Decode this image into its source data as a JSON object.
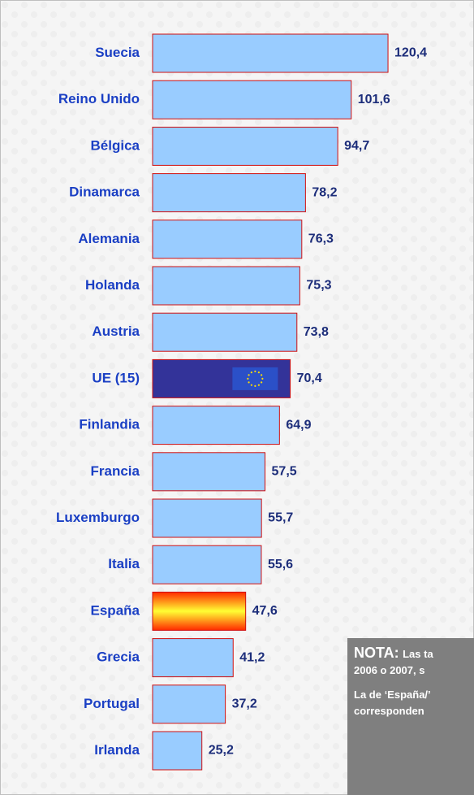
{
  "chart_data": {
    "type": "bar",
    "orientation": "horizontal",
    "categories": [
      "Suecia",
      "Reino Unido",
      "Bélgica",
      "Dinamarca",
      "Alemania",
      "Holanda",
      "Austria",
      "UE (15)",
      "Finlandia",
      "Francia",
      "Luxemburgo",
      "Italia",
      "España",
      "Grecia",
      "Portugal",
      "Irlanda"
    ],
    "values": [
      120.4,
      101.6,
      94.7,
      78.2,
      76.3,
      75.3,
      73.8,
      70.4,
      64.9,
      57.5,
      55.7,
      55.6,
      47.6,
      41.2,
      37.2,
      25.2
    ],
    "value_labels": [
      "120,4",
      "101,6",
      "94,7",
      "78,2",
      "76,3",
      "75,3",
      "73,8",
      "70,4",
      "64,9",
      "57,5",
      "55,7",
      "55,6",
      "47,6",
      "41,2",
      "37,2",
      "25,2"
    ],
    "colors": [
      "#99ccff",
      "#99ccff",
      "#99ccff",
      "#99ccff",
      "#99ccff",
      "#99ccff",
      "#99ccff",
      "#333399",
      "#99ccff",
      "#99ccff",
      "#99ccff",
      "#99ccff",
      [
        "#ff2a00",
        "#ffff33",
        "#ff2a00"
      ],
      "#99ccff",
      "#99ccff",
      "#99ccff"
    ]
  },
  "note": {
    "title": "NOTA:",
    "line1": "Las ta",
    "line2": "2006 o 2007, s",
    "line3": "La de ‘España/’",
    "line4": "corresponden"
  }
}
